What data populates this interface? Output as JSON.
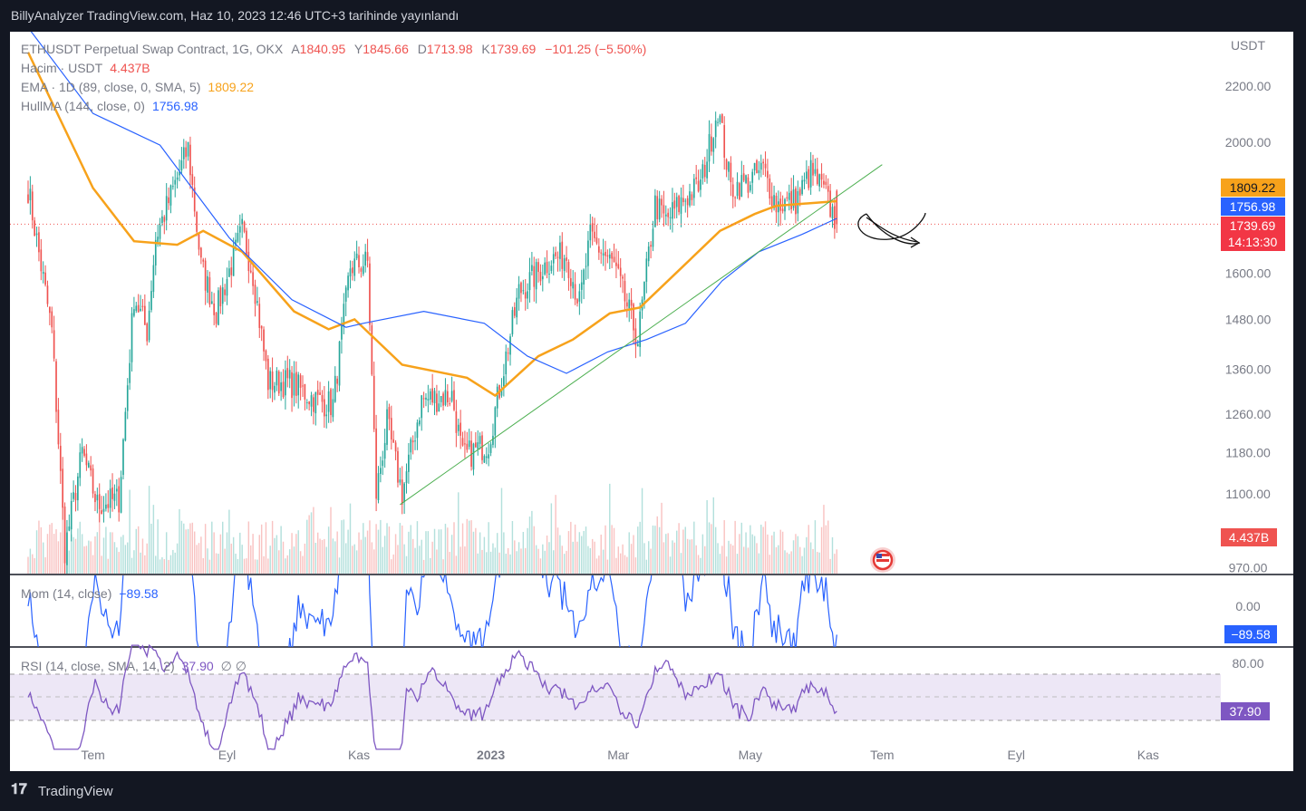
{
  "header": {
    "title": "BillyAnalyzer TradingView.com, Haz 10, 2023 12:46 UTC+3 tarihinde yayınlandı"
  },
  "footer": {
    "brand": "TradingView",
    "logo_icon": "tradingview-logo-icon"
  },
  "colors": {
    "up": "#26a69a",
    "down": "#ef5350",
    "ema": "#f7a21b",
    "hma": "#2962ff",
    "trend": "#4caf50",
    "mom": "#2962ff",
    "rsi": "#7e57c2",
    "price_line": "#ef5350"
  },
  "legend": {
    "symbol": "ETHUSDT Perpetual Swap Contract, 1G, OKX",
    "a_label": "A",
    "a_value": "1840.95",
    "y_label": "Y",
    "y_value": "1845.66",
    "d_label": "D",
    "d_value": "1713.98",
    "k_label": "K",
    "k_value": "1739.69",
    "change": "−101.25 (−5.50%)",
    "volume_label": "Hacim · USDT",
    "volume_value": "4.437B",
    "ema_label": "EMA · 1D (89, close, 0, SMA, 5)",
    "ema_value": "1809.22",
    "hma_label": "HullMA (144, close, 0)",
    "hma_value": "1756.98",
    "mom_label": "Mom (14, close)",
    "mom_value": "−89.58",
    "rsi_label": "RSI (14, close, SMA, 14, 2)",
    "rsi_value": "37.90",
    "rsi_extra": "∅  ∅"
  },
  "price_axis": {
    "currency": "USDT",
    "ticks": [
      "2200.00",
      "2000.00",
      "1600.00",
      "1480.00",
      "1360.00",
      "1260.00",
      "1180.00",
      "1100.00",
      "970.00"
    ]
  },
  "badges": {
    "ema": "1809.22",
    "hma": "1756.98",
    "price": "1739.69",
    "countdown": "14:13:30",
    "volume": "4.437B",
    "mom": "−89.58",
    "rsi": "37.90"
  },
  "mom_axis": {
    "ticks": [
      "0.00"
    ]
  },
  "rsi_axis": {
    "ticks": [
      "80.00"
    ]
  },
  "time_axis": {
    "labels": [
      "Tem",
      "Eyl",
      "Kas",
      "2023",
      "Mar",
      "May",
      "Tem",
      "Eyl",
      "Kas"
    ]
  },
  "chart_data": {
    "type": "candlestick",
    "title": "ETHUSDT Perpetual Swap Contract, 1G, OKX",
    "y_scale": "log",
    "ylim": [
      970,
      2330
    ],
    "x_range": [
      "2022-06-01",
      "2023-11-30"
    ],
    "last_candle": {
      "open": 1840.95,
      "high": 1845.66,
      "low": 1713.98,
      "close": 1739.69
    },
    "keypoints": [
      {
        "date": "2022-06-01",
        "close": 1850
      },
      {
        "date": "2022-06-12",
        "close": 1450
      },
      {
        "date": "2022-06-18",
        "close": 1000
      },
      {
        "date": "2022-06-26",
        "close": 1180
      },
      {
        "date": "2022-07-03",
        "close": 1080
      },
      {
        "date": "2022-07-13",
        "close": 1090
      },
      {
        "date": "2022-07-20",
        "close": 1540
      },
      {
        "date": "2022-07-26",
        "close": 1450
      },
      {
        "date": "2022-07-30",
        "close": 1700
      },
      {
        "date": "2022-08-14",
        "close": 1980
      },
      {
        "date": "2022-08-20",
        "close": 1620
      },
      {
        "date": "2022-08-27",
        "close": 1500
      },
      {
        "date": "2022-09-08",
        "close": 1720
      },
      {
        "date": "2022-09-13",
        "close": 1600
      },
      {
        "date": "2022-09-20",
        "close": 1330
      },
      {
        "date": "2022-09-30",
        "close": 1330
      },
      {
        "date": "2022-10-12",
        "close": 1290
      },
      {
        "date": "2022-10-20",
        "close": 1280
      },
      {
        "date": "2022-10-28",
        "close": 1620
      },
      {
        "date": "2022-11-05",
        "close": 1630
      },
      {
        "date": "2022-11-09",
        "close": 1100
      },
      {
        "date": "2022-11-14",
        "close": 1240
      },
      {
        "date": "2022-11-21",
        "close": 1100
      },
      {
        "date": "2022-11-30",
        "close": 1290
      },
      {
        "date": "2022-12-14",
        "close": 1300
      },
      {
        "date": "2022-12-19",
        "close": 1170
      },
      {
        "date": "2022-12-31",
        "close": 1200
      },
      {
        "date": "2023-01-14",
        "close": 1550
      },
      {
        "date": "2023-01-29",
        "close": 1640
      },
      {
        "date": "2023-02-05",
        "close": 1650
      },
      {
        "date": "2023-02-11",
        "close": 1520
      },
      {
        "date": "2023-02-16",
        "close": 1700
      },
      {
        "date": "2023-02-27",
        "close": 1620
      },
      {
        "date": "2023-03-10",
        "close": 1430
      },
      {
        "date": "2023-03-18",
        "close": 1800
      },
      {
        "date": "2023-03-23",
        "close": 1750
      },
      {
        "date": "2023-04-01",
        "close": 1820
      },
      {
        "date": "2023-04-08",
        "close": 1860
      },
      {
        "date": "2023-04-16",
        "close": 2120
      },
      {
        "date": "2023-04-22",
        "close": 1850
      },
      {
        "date": "2023-04-30",
        "close": 1870
      },
      {
        "date": "2023-05-07",
        "close": 1910
      },
      {
        "date": "2023-05-13",
        "close": 1800
      },
      {
        "date": "2023-05-22",
        "close": 1810
      },
      {
        "date": "2023-05-29",
        "close": 1900
      },
      {
        "date": "2023-06-04",
        "close": 1840
      },
      {
        "date": "2023-06-10",
        "close": 1739.69
      }
    ],
    "ema": [
      {
        "date": "2022-06-01",
        "value": 2330
      },
      {
        "date": "2022-07-01",
        "value": 1850
      },
      {
        "date": "2022-07-20",
        "value": 1690
      },
      {
        "date": "2022-08-09",
        "value": 1680
      },
      {
        "date": "2022-08-21",
        "value": 1720
      },
      {
        "date": "2022-09-08",
        "value": 1660
      },
      {
        "date": "2022-10-02",
        "value": 1500
      },
      {
        "date": "2022-10-18",
        "value": 1455
      },
      {
        "date": "2022-10-30",
        "value": 1480
      },
      {
        "date": "2022-11-21",
        "value": 1370
      },
      {
        "date": "2022-12-21",
        "value": 1340
      },
      {
        "date": "2023-01-03",
        "value": 1300
      },
      {
        "date": "2023-01-23",
        "value": 1390
      },
      {
        "date": "2023-02-08",
        "value": 1430
      },
      {
        "date": "2023-02-25",
        "value": 1495
      },
      {
        "date": "2023-03-11",
        "value": 1510
      },
      {
        "date": "2023-03-31",
        "value": 1620
      },
      {
        "date": "2023-04-17",
        "value": 1720
      },
      {
        "date": "2023-05-03",
        "value": 1770
      },
      {
        "date": "2023-05-13",
        "value": 1795
      },
      {
        "date": "2023-06-10",
        "value": 1809.22
      }
    ],
    "hma": [
      {
        "date": "2022-06-01",
        "value": 2430
      },
      {
        "date": "2022-07-01",
        "value": 2100
      },
      {
        "date": "2022-08-01",
        "value": 1990
      },
      {
        "date": "2022-09-02",
        "value": 1700
      },
      {
        "date": "2022-10-01",
        "value": 1530
      },
      {
        "date": "2022-10-26",
        "value": 1460
      },
      {
        "date": "2022-11-03",
        "value": 1470
      },
      {
        "date": "2022-12-01",
        "value": 1500
      },
      {
        "date": "2022-12-29",
        "value": 1470
      },
      {
        "date": "2023-01-18",
        "value": 1390
      },
      {
        "date": "2023-02-05",
        "value": 1350
      },
      {
        "date": "2023-02-24",
        "value": 1400
      },
      {
        "date": "2023-03-14",
        "value": 1430
      },
      {
        "date": "2023-04-01",
        "value": 1470
      },
      {
        "date": "2023-04-18",
        "value": 1580
      },
      {
        "date": "2023-05-05",
        "value": 1660
      },
      {
        "date": "2023-05-25",
        "value": 1710
      },
      {
        "date": "2023-06-10",
        "value": 1756.98
      }
    ],
    "trendline": [
      {
        "date": "2022-11-20",
        "value": 1080
      },
      {
        "date": "2023-07-01",
        "value": 1925
      }
    ],
    "volume_label": "4.437B",
    "momentum_last": -89.58,
    "rsi_last": 37.9,
    "rsi_bands": [
      70,
      50,
      30
    ]
  }
}
